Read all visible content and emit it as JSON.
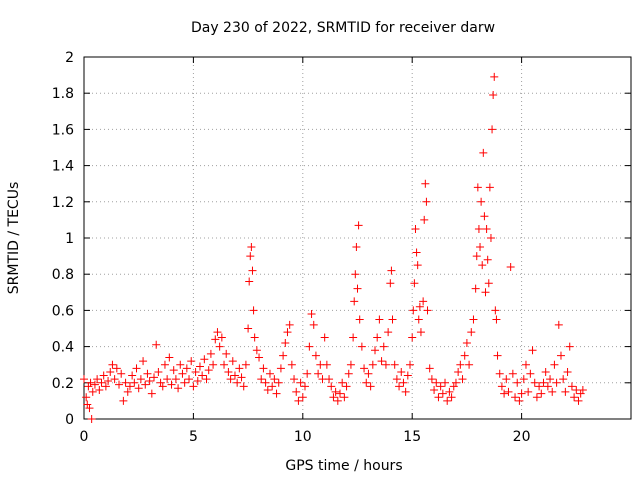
{
  "chart_data": {
    "type": "scatter",
    "title": "Day 230 of 2022, SRMTID for receiver darw",
    "xlabel": "GPS time / hours",
    "ylabel": "SRMTID / TECUs",
    "xlim": [
      0,
      25
    ],
    "ylim": [
      0,
      2
    ],
    "xticks": [
      0,
      5,
      10,
      15,
      20
    ],
    "xtick_labels": [
      "0",
      "5",
      "10",
      "15",
      "20"
    ],
    "yticks": [
      0,
      0.2,
      0.4,
      0.6,
      0.8,
      1,
      1.2,
      1.4,
      1.6,
      1.8,
      2
    ],
    "ytick_labels": [
      "0",
      "0.2",
      "0.4",
      "0.6",
      "0.8",
      "1",
      "1.2",
      "1.4",
      "1.6",
      "1.8",
      "2"
    ],
    "grid": true,
    "marker": "+",
    "color": "#ff0000",
    "series": [
      {
        "name": "darw",
        "points": [
          [
            0.0,
            0.22
          ],
          [
            0.1,
            0.12
          ],
          [
            0.15,
            0.08
          ],
          [
            0.2,
            0.18
          ],
          [
            0.25,
            0.06
          ],
          [
            0.3,
            0.2
          ],
          [
            0.35,
            0.0
          ],
          [
            0.4,
            0.15
          ],
          [
            0.5,
            0.19
          ],
          [
            0.6,
            0.22
          ],
          [
            0.7,
            0.16
          ],
          [
            0.8,
            0.2
          ],
          [
            0.9,
            0.24
          ],
          [
            1.0,
            0.18
          ],
          [
            1.1,
            0.21
          ],
          [
            1.2,
            0.26
          ],
          [
            1.3,
            0.3
          ],
          [
            1.4,
            0.22
          ],
          [
            1.5,
            0.28
          ],
          [
            1.6,
            0.19
          ],
          [
            1.7,
            0.25
          ],
          [
            1.8,
            0.1
          ],
          [
            1.9,
            0.2
          ],
          [
            2.0,
            0.15
          ],
          [
            2.1,
            0.18
          ],
          [
            2.2,
            0.24
          ],
          [
            2.3,
            0.2
          ],
          [
            2.4,
            0.28
          ],
          [
            2.5,
            0.17
          ],
          [
            2.6,
            0.22
          ],
          [
            2.7,
            0.32
          ],
          [
            2.8,
            0.19
          ],
          [
            2.9,
            0.25
          ],
          [
            3.0,
            0.21
          ],
          [
            3.1,
            0.14
          ],
          [
            3.2,
            0.23
          ],
          [
            3.3,
            0.41
          ],
          [
            3.4,
            0.26
          ],
          [
            3.5,
            0.2
          ],
          [
            3.6,
            0.18
          ],
          [
            3.7,
            0.3
          ],
          [
            3.8,
            0.22
          ],
          [
            3.9,
            0.34
          ],
          [
            4.0,
            0.19
          ],
          [
            4.1,
            0.27
          ],
          [
            4.2,
            0.22
          ],
          [
            4.3,
            0.17
          ],
          [
            4.4,
            0.3
          ],
          [
            4.5,
            0.25
          ],
          [
            4.6,
            0.2
          ],
          [
            4.7,
            0.28
          ],
          [
            4.8,
            0.22
          ],
          [
            4.9,
            0.32
          ],
          [
            5.0,
            0.18
          ],
          [
            5.1,
            0.26
          ],
          [
            5.2,
            0.21
          ],
          [
            5.3,
            0.29
          ],
          [
            5.4,
            0.24
          ],
          [
            5.5,
            0.33
          ],
          [
            5.6,
            0.22
          ],
          [
            5.7,
            0.27
          ],
          [
            5.8,
            0.36
          ],
          [
            5.9,
            0.3
          ],
          [
            6.0,
            0.44
          ],
          [
            6.1,
            0.48
          ],
          [
            6.2,
            0.4
          ],
          [
            6.3,
            0.45
          ],
          [
            6.4,
            0.3
          ],
          [
            6.5,
            0.36
          ],
          [
            6.6,
            0.26
          ],
          [
            6.7,
            0.22
          ],
          [
            6.8,
            0.32
          ],
          [
            6.9,
            0.24
          ],
          [
            7.0,
            0.2
          ],
          [
            7.1,
            0.28
          ],
          [
            7.2,
            0.23
          ],
          [
            7.3,
            0.18
          ],
          [
            7.4,
            0.3
          ],
          [
            7.5,
            0.5
          ],
          [
            7.55,
            0.76
          ],
          [
            7.6,
            0.9
          ],
          [
            7.65,
            0.95
          ],
          [
            7.7,
            0.82
          ],
          [
            7.75,
            0.6
          ],
          [
            7.8,
            0.45
          ],
          [
            7.9,
            0.38
          ],
          [
            8.0,
            0.34
          ],
          [
            8.1,
            0.22
          ],
          [
            8.2,
            0.28
          ],
          [
            8.3,
            0.2
          ],
          [
            8.4,
            0.16
          ],
          [
            8.5,
            0.25
          ],
          [
            8.6,
            0.18
          ],
          [
            8.7,
            0.22
          ],
          [
            8.8,
            0.14
          ],
          [
            8.9,
            0.2
          ],
          [
            9.0,
            0.28
          ],
          [
            9.1,
            0.35
          ],
          [
            9.2,
            0.42
          ],
          [
            9.3,
            0.48
          ],
          [
            9.4,
            0.52
          ],
          [
            9.5,
            0.3
          ],
          [
            9.6,
            0.22
          ],
          [
            9.7,
            0.15
          ],
          [
            9.8,
            0.1
          ],
          [
            9.9,
            0.2
          ],
          [
            10.0,
            0.12
          ],
          [
            10.1,
            0.18
          ],
          [
            10.2,
            0.25
          ],
          [
            10.3,
            0.4
          ],
          [
            10.4,
            0.58
          ],
          [
            10.5,
            0.52
          ],
          [
            10.6,
            0.35
          ],
          [
            10.7,
            0.25
          ],
          [
            10.8,
            0.3
          ],
          [
            10.9,
            0.22
          ],
          [
            11.0,
            0.45
          ],
          [
            11.1,
            0.3
          ],
          [
            11.2,
            0.22
          ],
          [
            11.3,
            0.18
          ],
          [
            11.4,
            0.12
          ],
          [
            11.5,
            0.15
          ],
          [
            11.6,
            0.1
          ],
          [
            11.7,
            0.14
          ],
          [
            11.8,
            0.2
          ],
          [
            11.9,
            0.12
          ],
          [
            12.0,
            0.18
          ],
          [
            12.1,
            0.25
          ],
          [
            12.2,
            0.3
          ],
          [
            12.3,
            0.45
          ],
          [
            12.35,
            0.65
          ],
          [
            12.4,
            0.8
          ],
          [
            12.45,
            0.95
          ],
          [
            12.5,
            0.72
          ],
          [
            12.55,
            1.07
          ],
          [
            12.6,
            0.55
          ],
          [
            12.7,
            0.4
          ],
          [
            12.8,
            0.28
          ],
          [
            12.9,
            0.2
          ],
          [
            13.0,
            0.25
          ],
          [
            13.1,
            0.18
          ],
          [
            13.2,
            0.3
          ],
          [
            13.3,
            0.38
          ],
          [
            13.4,
            0.45
          ],
          [
            13.5,
            0.55
          ],
          [
            13.6,
            0.32
          ],
          [
            13.7,
            0.4
          ],
          [
            13.8,
            0.3
          ],
          [
            13.9,
            0.48
          ],
          [
            14.0,
            0.75
          ],
          [
            14.05,
            0.82
          ],
          [
            14.1,
            0.55
          ],
          [
            14.2,
            0.3
          ],
          [
            14.3,
            0.22
          ],
          [
            14.4,
            0.18
          ],
          [
            14.5,
            0.26
          ],
          [
            14.6,
            0.2
          ],
          [
            14.7,
            0.15
          ],
          [
            14.8,
            0.24
          ],
          [
            14.9,
            0.3
          ],
          [
            15.0,
            0.45
          ],
          [
            15.05,
            0.6
          ],
          [
            15.1,
            0.75
          ],
          [
            15.15,
            1.05
          ],
          [
            15.2,
            0.92
          ],
          [
            15.25,
            0.85
          ],
          [
            15.3,
            0.55
          ],
          [
            15.35,
            0.62
          ],
          [
            15.4,
            0.48
          ],
          [
            15.5,
            0.65
          ],
          [
            15.55,
            1.1
          ],
          [
            15.6,
            1.3
          ],
          [
            15.65,
            1.2
          ],
          [
            15.7,
            0.6
          ],
          [
            15.8,
            0.28
          ],
          [
            15.9,
            0.22
          ],
          [
            16.0,
            0.16
          ],
          [
            16.1,
            0.2
          ],
          [
            16.2,
            0.12
          ],
          [
            16.3,
            0.18
          ],
          [
            16.4,
            0.14
          ],
          [
            16.5,
            0.2
          ],
          [
            16.6,
            0.1
          ],
          [
            16.7,
            0.15
          ],
          [
            16.8,
            0.12
          ],
          [
            16.9,
            0.18
          ],
          [
            17.0,
            0.2
          ],
          [
            17.1,
            0.26
          ],
          [
            17.2,
            0.3
          ],
          [
            17.3,
            0.22
          ],
          [
            17.4,
            0.35
          ],
          [
            17.5,
            0.42
          ],
          [
            17.6,
            0.3
          ],
          [
            17.7,
            0.48
          ],
          [
            17.8,
            0.55
          ],
          [
            17.9,
            0.72
          ],
          [
            17.95,
            0.9
          ],
          [
            18.0,
            1.28
          ],
          [
            18.05,
            1.05
          ],
          [
            18.1,
            0.95
          ],
          [
            18.15,
            1.2
          ],
          [
            18.2,
            0.85
          ],
          [
            18.25,
            1.47
          ],
          [
            18.3,
            1.12
          ],
          [
            18.35,
            0.7
          ],
          [
            18.4,
            1.05
          ],
          [
            18.45,
            0.88
          ],
          [
            18.5,
            0.75
          ],
          [
            18.55,
            1.28
          ],
          [
            18.6,
            1.0
          ],
          [
            18.65,
            1.6
          ],
          [
            18.7,
            1.79
          ],
          [
            18.75,
            1.89
          ],
          [
            18.8,
            0.6
          ],
          [
            18.85,
            0.55
          ],
          [
            18.9,
            0.35
          ],
          [
            19.0,
            0.25
          ],
          [
            19.1,
            0.18
          ],
          [
            19.2,
            0.14
          ],
          [
            19.3,
            0.22
          ],
          [
            19.4,
            0.15
          ],
          [
            19.5,
            0.84
          ],
          [
            19.6,
            0.25
          ],
          [
            19.7,
            0.12
          ],
          [
            19.8,
            0.2
          ],
          [
            19.9,
            0.1
          ],
          [
            20.0,
            0.14
          ],
          [
            20.1,
            0.22
          ],
          [
            20.2,
            0.3
          ],
          [
            20.3,
            0.15
          ],
          [
            20.4,
            0.25
          ],
          [
            20.5,
            0.38
          ],
          [
            20.6,
            0.2
          ],
          [
            20.7,
            0.12
          ],
          [
            20.8,
            0.18
          ],
          [
            20.9,
            0.14
          ],
          [
            21.0,
            0.2
          ],
          [
            21.1,
            0.26
          ],
          [
            21.2,
            0.18
          ],
          [
            21.3,
            0.22
          ],
          [
            21.4,
            0.15
          ],
          [
            21.5,
            0.3
          ],
          [
            21.6,
            0.2
          ],
          [
            21.7,
            0.52
          ],
          [
            21.8,
            0.35
          ],
          [
            21.9,
            0.22
          ],
          [
            22.0,
            0.15
          ],
          [
            22.1,
            0.26
          ],
          [
            22.2,
            0.4
          ],
          [
            22.3,
            0.18
          ],
          [
            22.4,
            0.12
          ],
          [
            22.5,
            0.16
          ],
          [
            22.6,
            0.1
          ],
          [
            22.7,
            0.14
          ],
          [
            22.8,
            0.16
          ]
        ]
      }
    ]
  }
}
